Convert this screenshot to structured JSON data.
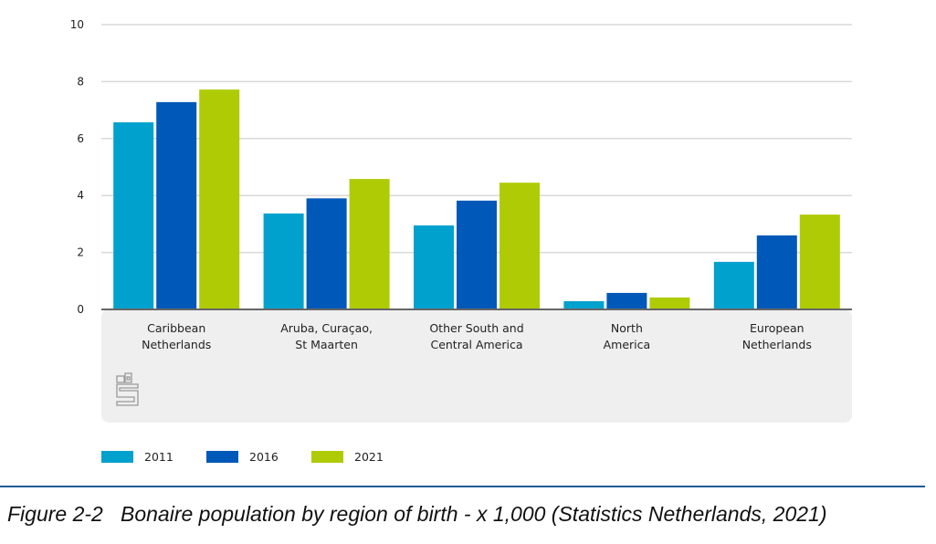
{
  "chart_data": {
    "type": "bar",
    "title": "",
    "xlabel": "",
    "ylabel": "",
    "ylim": [
      0,
      10
    ],
    "yticks": [
      0,
      2,
      4,
      6,
      8,
      10
    ],
    "grid": true,
    "legend_position": "bottom-left",
    "categories": [
      [
        "Caribbean",
        "Netherlands"
      ],
      [
        "Aruba, Curaçao,",
        "St Maarten"
      ],
      [
        "Other South and",
        "Central America"
      ],
      [
        "North",
        "America"
      ],
      [
        "European",
        "Netherlands"
      ]
    ],
    "series": [
      {
        "name": "2011",
        "color": "#00a1cd",
        "values": [
          6.57,
          3.37,
          2.95,
          0.29,
          1.67
        ]
      },
      {
        "name": "2016",
        "color": "#0058b8",
        "values": [
          7.28,
          3.9,
          3.82,
          0.58,
          2.6
        ]
      },
      {
        "name": "2021",
        "color": "#afcb05",
        "values": [
          7.72,
          4.58,
          4.45,
          0.42,
          3.33
        ]
      }
    ]
  },
  "logo": "cbs-logo",
  "caption": "Figure 2-2   Bonaire population by region of birth - x 1,000 (Statistics Netherlands, 2021)"
}
